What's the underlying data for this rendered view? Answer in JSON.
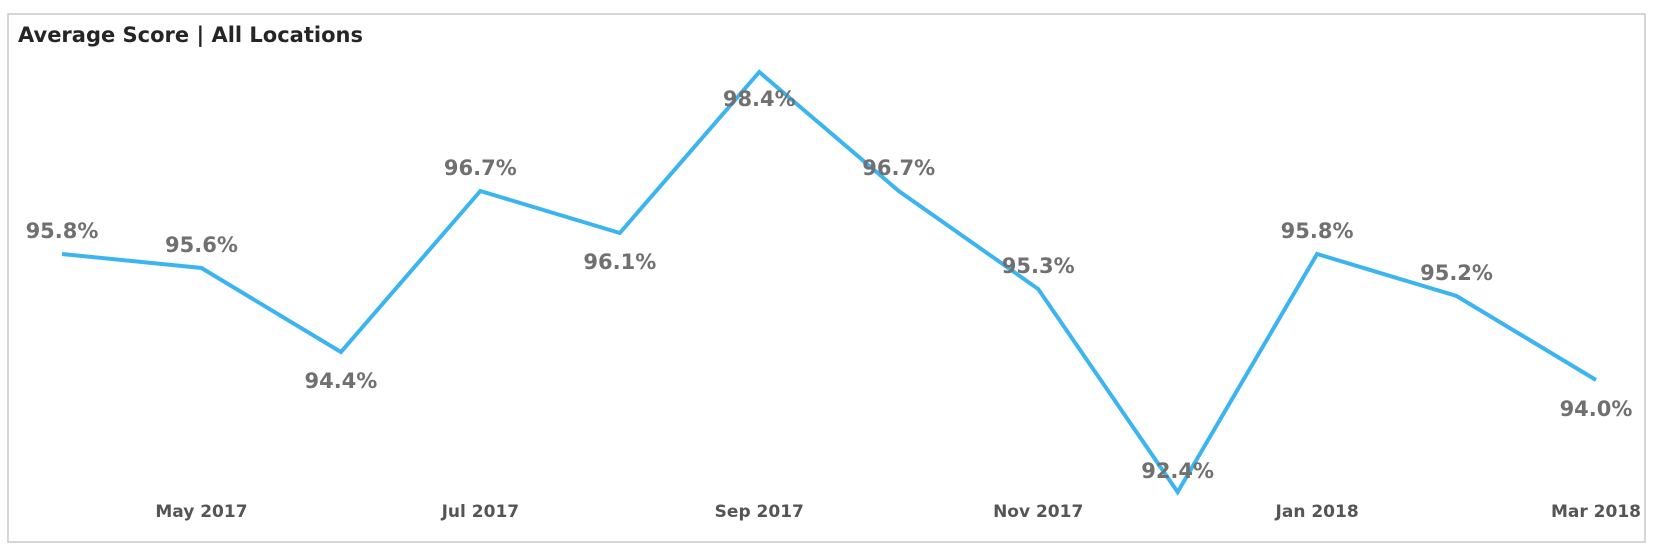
{
  "chart_data": {
    "type": "line",
    "title": "Average Score | All Locations",
    "categories": [
      null,
      "May 2017",
      null,
      "Jul 2017",
      null,
      "Sep 2017",
      null,
      "Nov 2017",
      null,
      "Jan 2018",
      null,
      "Mar 2018"
    ],
    "series": [
      {
        "color": "#3bb4f0",
        "values": [
          95.8,
          95.6,
          94.4,
          96.7,
          96.1,
          98.4,
          96.7,
          95.3,
          92.4,
          95.8,
          95.2,
          94.0
        ],
        "value_labels": [
          "95.8%",
          "95.6%",
          "94.4%",
          "96.7%",
          "96.1%",
          "98.4%",
          "96.7%",
          "95.3%",
          "92.4%",
          "95.8%",
          "95.2%",
          "94.0%"
        ]
      }
    ]
  }
}
